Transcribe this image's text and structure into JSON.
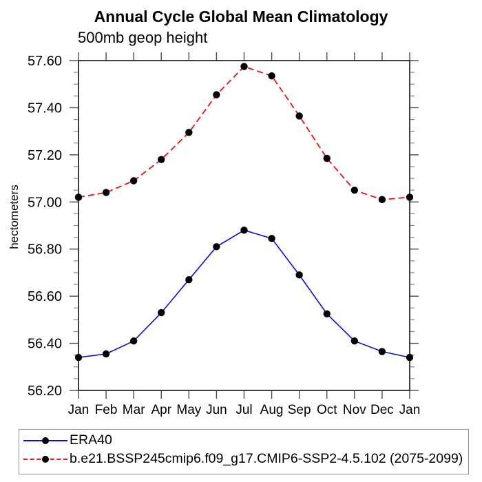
{
  "title": "Annual Cycle Global Mean Climatology",
  "subtitle": "500mb geop height",
  "chart_data": {
    "type": "line",
    "categories": [
      "Jan",
      "Feb",
      "Mar",
      "Apr",
      "May",
      "Jun",
      "Jul",
      "Aug",
      "Sep",
      "Oct",
      "Nov",
      "Dec",
      "Jan"
    ],
    "series": [
      {
        "name": "ERA40",
        "color": "#0b0bf0",
        "line_style": "solid",
        "marker": "filled-circle",
        "values": [
          56.34,
          56.355,
          56.41,
          56.53,
          56.67,
          56.81,
          56.88,
          56.845,
          56.69,
          56.525,
          56.41,
          56.365,
          56.34
        ]
      },
      {
        "name": "b.e21.BSSP245cmip6.f09_g17.CMIP6-SSP2-4.5.102 (2075-2099)",
        "color": "#f50f0f",
        "line_style": "dashed",
        "marker": "filled-circle",
        "values": [
          57.02,
          57.04,
          57.09,
          57.18,
          57.295,
          57.455,
          57.575,
          57.535,
          57.365,
          57.185,
          57.05,
          57.01,
          57.02
        ]
      }
    ],
    "ylabel": "hectometers",
    "xlabel": "",
    "ylim": [
      56.2,
      57.6
    ],
    "y_major_step": 0.2,
    "y_minor_step": 0.05,
    "y_tick_labels": [
      "56.20",
      "56.40",
      "56.60",
      "56.80",
      "57.00",
      "57.20",
      "57.40",
      "57.60"
    ],
    "grid": false,
    "legend_position": "bottom-left-box",
    "marker_color": "#000000",
    "frame_color": "#1f1f1f",
    "major_tick_color": "#4a4a4a",
    "minor_tick_color": "#8a8a8a"
  }
}
